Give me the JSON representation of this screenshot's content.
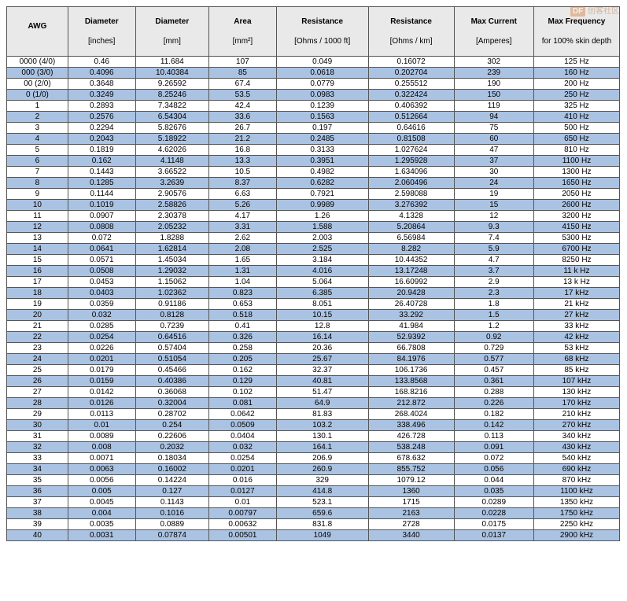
{
  "watermark": {
    "logo": "DF",
    "line1": "创客社区"
  },
  "table": {
    "columns": [
      {
        "title": "AWG",
        "unit": ""
      },
      {
        "title": "Diameter",
        "unit": "[inches]"
      },
      {
        "title": "Diameter",
        "unit": "[mm]"
      },
      {
        "title": "Area",
        "unit": "[mm²]"
      },
      {
        "title": "Resistance",
        "unit": "[Ohms / 1000 ft]"
      },
      {
        "title": "Resistance",
        "unit": "[Ohms / km]"
      },
      {
        "title": "Max Current",
        "unit": "[Amperes]"
      },
      {
        "title": "Max Frequency",
        "unit": "for 100% skin depth"
      }
    ],
    "col_widths_pct": [
      10,
      11,
      12,
      11,
      15,
      14,
      13,
      14
    ],
    "header_bg": "#e9e9e9",
    "row_bg_even": "#ffffff",
    "row_bg_odd": "#abc3e3",
    "border_color": "#555555",
    "font_size_pt": 8,
    "rows": [
      [
        "0000 (4/0)",
        "0.46",
        "11.684",
        "107",
        "0.049",
        "0.16072",
        "302",
        "125 Hz"
      ],
      [
        "000 (3/0)",
        "0.4096",
        "10.40384",
        "85",
        "0.0618",
        "0.202704",
        "239",
        "160 Hz"
      ],
      [
        "00 (2/0)",
        "0.3648",
        "9.26592",
        "67.4",
        "0.0779",
        "0.255512",
        "190",
        "200 Hz"
      ],
      [
        "0 (1/0)",
        "0.3249",
        "8.25246",
        "53.5",
        "0.0983",
        "0.322424",
        "150",
        "250 Hz"
      ],
      [
        "1",
        "0.2893",
        "7.34822",
        "42.4",
        "0.1239",
        "0.406392",
        "119",
        "325 Hz"
      ],
      [
        "2",
        "0.2576",
        "6.54304",
        "33.6",
        "0.1563",
        "0.512664",
        "94",
        "410 Hz"
      ],
      [
        "3",
        "0.2294",
        "5.82676",
        "26.7",
        "0.197",
        "0.64616",
        "75",
        "500 Hz"
      ],
      [
        "4",
        "0.2043",
        "5.18922",
        "21.2",
        "0.2485",
        "0.81508",
        "60",
        "650 Hz"
      ],
      [
        "5",
        "0.1819",
        "4.62026",
        "16.8",
        "0.3133",
        "1.027624",
        "47",
        "810 Hz"
      ],
      [
        "6",
        "0.162",
        "4.1148",
        "13.3",
        "0.3951",
        "1.295928",
        "37",
        "1100 Hz"
      ],
      [
        "7",
        "0.1443",
        "3.66522",
        "10.5",
        "0.4982",
        "1.634096",
        "30",
        "1300 Hz"
      ],
      [
        "8",
        "0.1285",
        "3.2639",
        "8.37",
        "0.6282",
        "2.060496",
        "24",
        "1650 Hz"
      ],
      [
        "9",
        "0.1144",
        "2.90576",
        "6.63",
        "0.7921",
        "2.598088",
        "19",
        "2050 Hz"
      ],
      [
        "10",
        "0.1019",
        "2.58826",
        "5.26",
        "0.9989",
        "3.276392",
        "15",
        "2600 Hz"
      ],
      [
        "11",
        "0.0907",
        "2.30378",
        "4.17",
        "1.26",
        "4.1328",
        "12",
        "3200 Hz"
      ],
      [
        "12",
        "0.0808",
        "2.05232",
        "3.31",
        "1.588",
        "5.20864",
        "9.3",
        "4150 Hz"
      ],
      [
        "13",
        "0.072",
        "1.8288",
        "2.62",
        "2.003",
        "6.56984",
        "7.4",
        "5300 Hz"
      ],
      [
        "14",
        "0.0641",
        "1.62814",
        "2.08",
        "2.525",
        "8.282",
        "5.9",
        "6700 Hz"
      ],
      [
        "15",
        "0.0571",
        "1.45034",
        "1.65",
        "3.184",
        "10.44352",
        "4.7",
        "8250 Hz"
      ],
      [
        "16",
        "0.0508",
        "1.29032",
        "1.31",
        "4.016",
        "13.17248",
        "3.7",
        "11 k Hz"
      ],
      [
        "17",
        "0.0453",
        "1.15062",
        "1.04",
        "5.064",
        "16.60992",
        "2.9",
        "13 k Hz"
      ],
      [
        "18",
        "0.0403",
        "1.02362",
        "0.823",
        "6.385",
        "20.9428",
        "2.3",
        "17 kHz"
      ],
      [
        "19",
        "0.0359",
        "0.91186",
        "0.653",
        "8.051",
        "26.40728",
        "1.8",
        "21 kHz"
      ],
      [
        "20",
        "0.032",
        "0.8128",
        "0.518",
        "10.15",
        "33.292",
        "1.5",
        "27 kHz"
      ],
      [
        "21",
        "0.0285",
        "0.7239",
        "0.41",
        "12.8",
        "41.984",
        "1.2",
        "33 kHz"
      ],
      [
        "22",
        "0.0254",
        "0.64516",
        "0.326",
        "16.14",
        "52.9392",
        "0.92",
        "42 kHz"
      ],
      [
        "23",
        "0.0226",
        "0.57404",
        "0.258",
        "20.36",
        "66.7808",
        "0.729",
        "53 kHz"
      ],
      [
        "24",
        "0.0201",
        "0.51054",
        "0.205",
        "25.67",
        "84.1976",
        "0.577",
        "68 kHz"
      ],
      [
        "25",
        "0.0179",
        "0.45466",
        "0.162",
        "32.37",
        "106.1736",
        "0.457",
        "85 kHz"
      ],
      [
        "26",
        "0.0159",
        "0.40386",
        "0.129",
        "40.81",
        "133.8568",
        "0.361",
        "107 kHz"
      ],
      [
        "27",
        "0.0142",
        "0.36068",
        "0.102",
        "51.47",
        "168.8216",
        "0.288",
        "130 kHz"
      ],
      [
        "28",
        "0.0126",
        "0.32004",
        "0.081",
        "64.9",
        "212.872",
        "0.226",
        "170 kHz"
      ],
      [
        "29",
        "0.0113",
        "0.28702",
        "0.0642",
        "81.83",
        "268.4024",
        "0.182",
        "210 kHz"
      ],
      [
        "30",
        "0.01",
        "0.254",
        "0.0509",
        "103.2",
        "338.496",
        "0.142",
        "270 kHz"
      ],
      [
        "31",
        "0.0089",
        "0.22606",
        "0.0404",
        "130.1",
        "426.728",
        "0.113",
        "340 kHz"
      ],
      [
        "32",
        "0.008",
        "0.2032",
        "0.032",
        "164.1",
        "538.248",
        "0.091",
        "430 kHz"
      ],
      [
        "33",
        "0.0071",
        "0.18034",
        "0.0254",
        "206.9",
        "678.632",
        "0.072",
        "540 kHz"
      ],
      [
        "34",
        "0.0063",
        "0.16002",
        "0.0201",
        "260.9",
        "855.752",
        "0.056",
        "690 kHz"
      ],
      [
        "35",
        "0.0056",
        "0.14224",
        "0.016",
        "329",
        "1079.12",
        "0.044",
        "870 kHz"
      ],
      [
        "36",
        "0.005",
        "0.127",
        "0.0127",
        "414.8",
        "1360",
        "0.035",
        "1100 kHz"
      ],
      [
        "37",
        "0.0045",
        "0.1143",
        "0.01",
        "523.1",
        "1715",
        "0.0289",
        "1350 kHz"
      ],
      [
        "38",
        "0.004",
        "0.1016",
        "0.00797",
        "659.6",
        "2163",
        "0.0228",
        "1750 kHz"
      ],
      [
        "39",
        "0.0035",
        "0.0889",
        "0.00632",
        "831.8",
        "2728",
        "0.0175",
        "2250 kHz"
      ],
      [
        "40",
        "0.0031",
        "0.07874",
        "0.00501",
        "1049",
        "3440",
        "0.0137",
        "2900 kHz"
      ]
    ]
  }
}
